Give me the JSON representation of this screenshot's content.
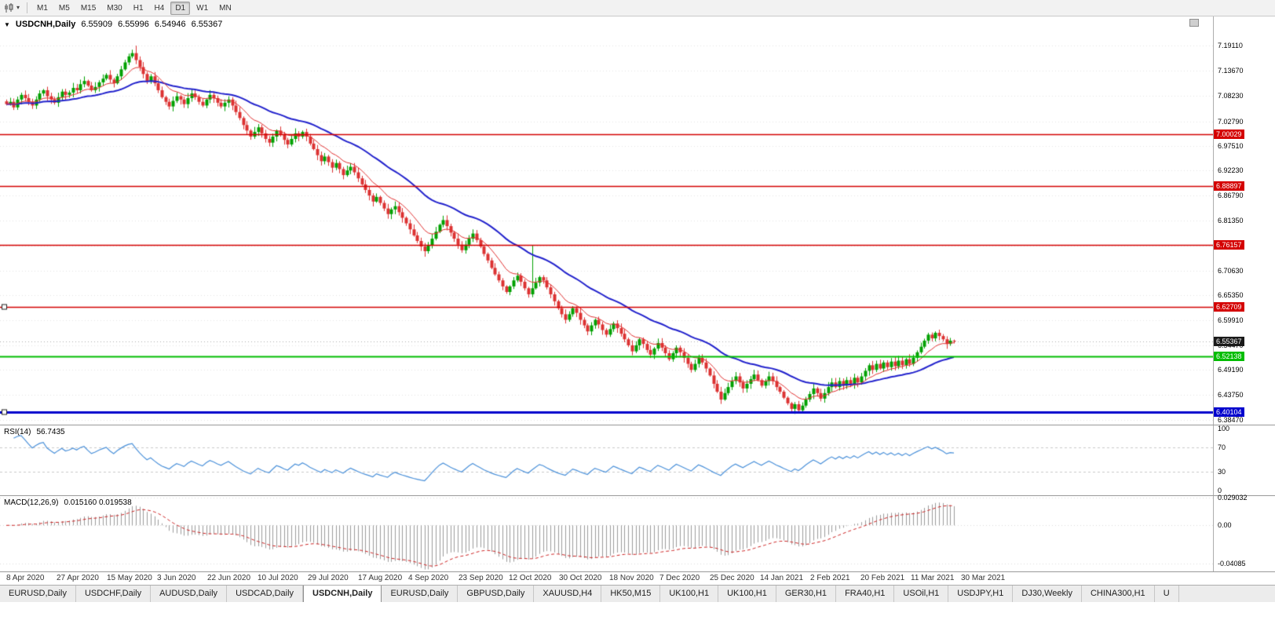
{
  "toolbar": {
    "chart_type_icon": "candlestick-chart-icon",
    "timeframes": [
      {
        "label": "M1",
        "active": false
      },
      {
        "label": "M5",
        "active": false
      },
      {
        "label": "M15",
        "active": false
      },
      {
        "label": "M30",
        "active": false
      },
      {
        "label": "H1",
        "active": false
      },
      {
        "label": "H4",
        "active": false
      },
      {
        "label": "D1",
        "active": true
      },
      {
        "label": "W1",
        "active": false
      },
      {
        "label": "MN",
        "active": false
      }
    ]
  },
  "chart": {
    "title": {
      "symbol": "USDCNH,Daily",
      "open": "6.55909",
      "high": "6.55996",
      "low": "6.54946",
      "close": "6.55367"
    },
    "price_axis": {
      "min": 6.374,
      "max": 7.254,
      "ticks": [
        "7.19110",
        "7.13670",
        "7.08230",
        "7.02790",
        "6.97510",
        "6.92230",
        "6.86790",
        "6.81350",
        "6.75910",
        "6.70630",
        "6.65350",
        "6.59910",
        "6.54470",
        "6.49190",
        "6.43750",
        "6.38470"
      ]
    },
    "levels": [
      {
        "label": "7.00029",
        "value": 7.00029,
        "color": "#d40000",
        "width": 1.5,
        "handle": false
      },
      {
        "label": "6.88897",
        "value": 6.88897,
        "color": "#d40000",
        "width": 1.5,
        "handle": false
      },
      {
        "label": "6.76157",
        "value": 6.76157,
        "color": "#d40000",
        "width": 1.5,
        "handle": false
      },
      {
        "label": "6.62709",
        "value": 6.62709,
        "color": "#d40000",
        "width": 1.5,
        "handle": true
      },
      {
        "label": "6.52138",
        "value": 6.52138,
        "color": "#00bd00",
        "width": 2,
        "handle": false
      },
      {
        "label": "6.40104",
        "value": 6.40104,
        "color": "#0000cd",
        "width": 3,
        "handle": true
      }
    ],
    "current_price": {
      "label": "6.55367",
      "value": 6.55367,
      "badge_color": "#1a1a1a"
    }
  },
  "rsi": {
    "title": "RSI(14)",
    "value": "56.7435",
    "period": 14,
    "axis": [
      "100",
      "70",
      "30",
      "0"
    ],
    "levels": [
      70,
      30
    ],
    "line_color": "#4a90d9"
  },
  "macd": {
    "title": "MACD(12,26,9)",
    "values": "0.015160 0.019538",
    "fast": 12,
    "slow": 26,
    "signal": 9,
    "axis": [
      {
        "label": "0.029032",
        "value": 0.029032
      },
      {
        "label": "0.00",
        "value": 0
      },
      {
        "label": "-0.04085",
        "value": -0.04085
      }
    ],
    "hist_color": "#9b9b9b",
    "signal_color": "#cc2222"
  },
  "dates": [
    "8 Apr 2020",
    "27 Apr 2020",
    "15 May 2020",
    "3 Jun 2020",
    "22 Jun 2020",
    "10 Jul 2020",
    "29 Jul 2020",
    "17 Aug 2020",
    "4 Sep 2020",
    "23 Sep 2020",
    "12 Oct 2020",
    "30 Oct 2020",
    "18 Nov 2020",
    "7 Dec 2020",
    "25 Dec 2020",
    "14 Jan 2021",
    "2 Feb 2021",
    "20 Feb 2021",
    "11 Mar 2021",
    "30 Mar 2021"
  ],
  "tabs": [
    {
      "label": "EURUSD,Daily",
      "active": false
    },
    {
      "label": "USDCHF,Daily",
      "active": false
    },
    {
      "label": "AUDUSD,Daily",
      "active": false
    },
    {
      "label": "USDCAD,Daily",
      "active": false
    },
    {
      "label": "USDCNH,Daily",
      "active": true
    },
    {
      "label": "EURUSD,Daily",
      "active": false
    },
    {
      "label": "GBPUSD,Daily",
      "active": false
    },
    {
      "label": "XAUUSD,H4",
      "active": false
    },
    {
      "label": "HK50,M15",
      "active": false
    },
    {
      "label": "UK100,H1",
      "active": false
    },
    {
      "label": "UK100,H1",
      "active": false
    },
    {
      "label": "GER30,H1",
      "active": false
    },
    {
      "label": "FRA40,H1",
      "active": false
    },
    {
      "label": "USOil,H1",
      "active": false
    },
    {
      "label": "USDJPY,H1",
      "active": false
    },
    {
      "label": "DJ30,Weekly",
      "active": false
    },
    {
      "label": "CHINA300,H1",
      "active": false
    },
    {
      "label": "U",
      "active": false
    }
  ],
  "chart_data": {
    "type": "candlestick",
    "symbol": "USDCNH",
    "timeframe": "Daily",
    "closes": [
      7.065,
      7.07,
      7.058,
      7.075,
      7.085,
      7.078,
      7.07,
      7.062,
      7.075,
      7.088,
      7.095,
      7.082,
      7.075,
      7.068,
      7.08,
      7.092,
      7.085,
      7.09,
      7.1,
      7.095,
      7.108,
      7.115,
      7.105,
      7.095,
      7.102,
      7.112,
      7.12,
      7.128,
      7.118,
      7.11,
      7.125,
      7.14,
      7.155,
      7.168,
      7.175,
      7.16,
      7.145,
      7.13,
      7.115,
      7.125,
      7.11,
      7.095,
      7.08,
      7.07,
      7.06,
      7.072,
      7.082,
      7.075,
      7.065,
      7.078,
      7.088,
      7.08,
      7.07,
      7.062,
      7.075,
      7.085,
      7.078,
      7.068,
      7.06,
      7.068,
      7.075,
      7.062,
      7.048,
      7.035,
      7.02,
      7.008,
      6.995,
      7.005,
      7.015,
      7.002,
      6.99,
      6.982,
      6.995,
      7.008,
      7.0,
      6.988,
      6.978,
      6.99,
      7.002,
      6.995,
      7.005,
      6.995,
      6.98,
      6.968,
      6.955,
      6.942,
      6.952,
      6.94,
      6.928,
      6.938,
      6.925,
      6.912,
      6.922,
      6.93,
      6.918,
      6.905,
      6.892,
      6.88,
      6.868,
      6.855,
      6.865,
      6.852,
      6.84,
      6.828,
      6.838,
      6.845,
      6.832,
      6.82,
      6.808,
      6.795,
      6.782,
      6.77,
      6.758,
      6.748,
      6.76,
      6.775,
      6.79,
      6.805,
      6.815,
      6.802,
      6.788,
      6.775,
      6.762,
      6.75,
      6.762,
      6.775,
      6.786,
      6.772,
      6.758,
      6.742,
      6.728,
      6.712,
      6.698,
      6.685,
      6.672,
      6.66,
      6.672,
      6.685,
      6.695,
      6.682,
      6.668,
      6.655,
      6.668,
      6.68,
      6.692,
      6.685,
      6.67,
      6.655,
      6.64,
      6.625,
      6.612,
      6.6,
      6.612,
      6.625,
      6.615,
      6.6,
      6.588,
      6.575,
      6.588,
      6.6,
      6.59,
      6.578,
      6.568,
      6.58,
      6.592,
      6.582,
      6.57,
      6.558,
      6.545,
      6.532,
      6.545,
      6.558,
      6.548,
      6.535,
      6.525,
      6.538,
      6.55,
      6.54,
      6.528,
      6.515,
      6.528,
      6.54,
      6.53,
      6.518,
      6.505,
      6.492,
      6.505,
      6.518,
      6.508,
      6.495,
      6.48,
      6.462,
      6.445,
      6.428,
      6.442,
      6.455,
      6.468,
      6.478,
      6.465,
      6.452,
      6.462,
      6.472,
      6.482,
      6.47,
      6.458,
      6.468,
      6.478,
      6.468,
      6.455,
      6.445,
      6.432,
      6.42,
      6.408,
      6.418,
      6.405,
      6.415,
      6.428,
      6.44,
      6.452,
      6.442,
      6.43,
      6.442,
      6.455,
      6.465,
      6.455,
      6.468,
      6.458,
      6.47,
      6.462,
      6.475,
      6.465,
      6.478,
      6.49,
      6.502,
      6.492,
      6.505,
      6.495,
      6.508,
      6.498,
      6.51,
      6.5,
      6.512,
      6.502,
      6.515,
      6.505,
      6.518,
      6.53,
      6.542,
      6.555,
      6.568,
      6.56,
      6.572,
      6.565,
      6.558,
      6.548,
      6.555,
      6.5537
    ],
    "high_overrides": {
      "35": 7.1911,
      "142": 6.76
    },
    "low_overrides": {
      "113": 6.736,
      "212": 6.4015,
      "214": 6.4008
    },
    "ma_fast_period": 10,
    "ma_slow_period": 34,
    "colors": {
      "up": "#00a000",
      "down": "#dc3232",
      "ma_fast": "#e03030",
      "ma_slow": "#2222cc",
      "grid": "#e4e4e4",
      "current_line": "#ababab"
    }
  }
}
